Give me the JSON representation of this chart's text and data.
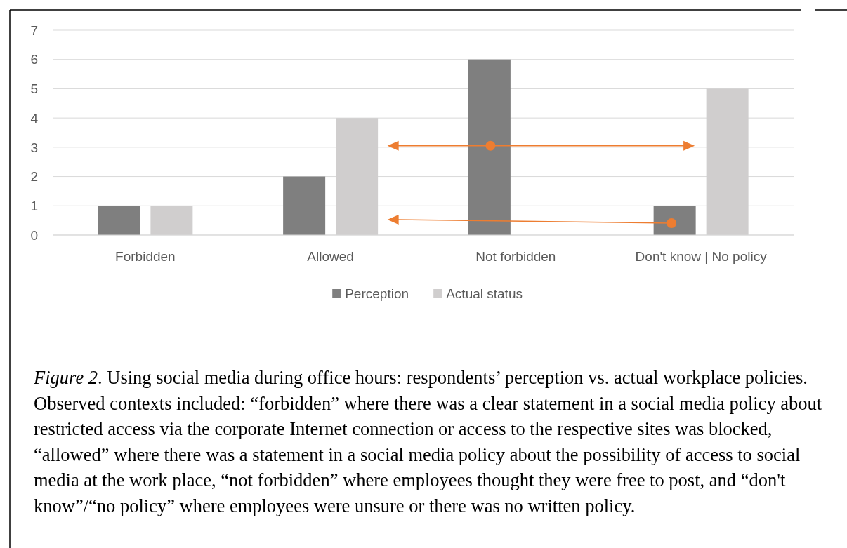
{
  "chart_data": {
    "type": "bar",
    "categories": [
      "Forbidden",
      "Allowed",
      "Not forbidden",
      "Don't know | No policy"
    ],
    "series": [
      {
        "name": "Perception",
        "color": "#7f7f7f",
        "values": [
          1,
          2,
          6,
          1
        ]
      },
      {
        "name": "Actual status",
        "color": "#d0cece",
        "values": [
          1,
          4,
          0,
          5
        ]
      }
    ],
    "ylim": [
      0,
      7
    ],
    "yticks": [
      0,
      1,
      2,
      3,
      4,
      5,
      6,
      7
    ],
    "grid": "y",
    "legend": "bottom",
    "annotations": [
      "Figure 2. Using social media during office hours: respondents’ perception vs. actual workplace policies. Observed contexts included: “forbidden” where there was a clear statement in a social media policy about restricted access via the corporate Internet connection or access to the respective sites was blocked, “allowed” where there was a statement in a social media policy about the possibility of access to social media at the work place, “not forbidden” where employees thought they were free to post, and “don't know”/“no policy” where employees were unsure or there was no written policy."
    ]
  }
}
